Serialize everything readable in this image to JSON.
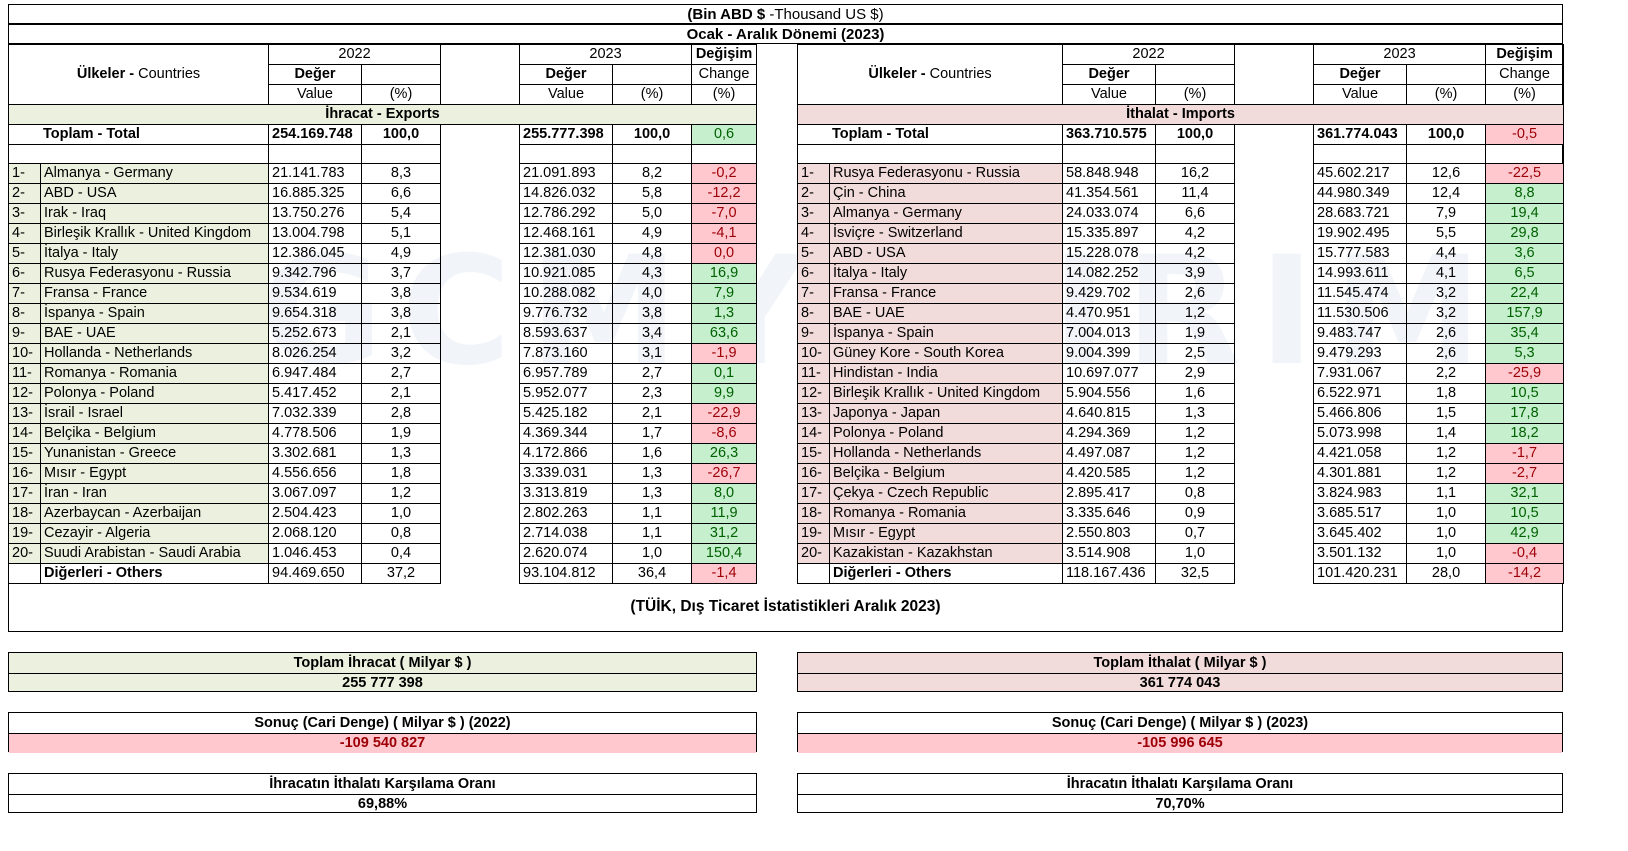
{
  "header": {
    "unit_bold": "(Bin ABD $",
    "unit_rest": " -Thousand US $)",
    "period": "Ocak - Aralık Dönemi  (2023)"
  },
  "columns": {
    "countries_bold": "Ülkeler - ",
    "countries_rest": "Countries",
    "year_2022": "2022",
    "year_2023": "2023",
    "deger": "Değer",
    "value": "Value",
    "pct": "(%)",
    "degisim": "Değişim",
    "change": "Change",
    "change_pct": "(%)"
  },
  "exports": {
    "section_title": "İhracat - Exports",
    "total": {
      "label": "Toplam - Total",
      "v2022": "254.169.748",
      "p2022": "100,0",
      "v2023": "255.777.398",
      "p2023": "100,0",
      "chg": "0,6",
      "dir": "pos"
    },
    "rows": [
      {
        "rank": "1-",
        "name": "Almanya - Germany",
        "v2022": "21.141.783",
        "p2022": "8,3",
        "v2023": "21.091.893",
        "p2023": "8,2",
        "chg": "-0,2",
        "dir": "neg"
      },
      {
        "rank": "2-",
        "name": "ABD - USA",
        "v2022": "16.885.325",
        "p2022": "6,6",
        "v2023": "14.826.032",
        "p2023": "5,8",
        "chg": "-12,2",
        "dir": "neg"
      },
      {
        "rank": "3-",
        "name": "Irak - Iraq",
        "v2022": "13.750.276",
        "p2022": "5,4",
        "v2023": "12.786.292",
        "p2023": "5,0",
        "chg": "-7,0",
        "dir": "neg"
      },
      {
        "rank": "4-",
        "name": "Birleşik Krallık - United Kingdom",
        "v2022": "13.004.798",
        "p2022": "5,1",
        "v2023": "12.468.161",
        "p2023": "4,9",
        "chg": "-4,1",
        "dir": "neg"
      },
      {
        "rank": "5-",
        "name": "İtalya - Italy",
        "v2022": "12.386.045",
        "p2022": "4,9",
        "v2023": "12.381.030",
        "p2023": "4,8",
        "chg": "0,0",
        "dir": "neg"
      },
      {
        "rank": "6-",
        "name": "Rusya Federasyonu - Russia",
        "v2022": "9.342.796",
        "p2022": "3,7",
        "v2023": "10.921.085",
        "p2023": "4,3",
        "chg": "16,9",
        "dir": "pos"
      },
      {
        "rank": "7-",
        "name": "Fransa - France",
        "v2022": "9.534.619",
        "p2022": "3,8",
        "v2023": "10.288.082",
        "p2023": "4,0",
        "chg": "7,9",
        "dir": "pos"
      },
      {
        "rank": "8-",
        "name": "İspanya - Spain",
        "v2022": "9.654.318",
        "p2022": "3,8",
        "v2023": "9.776.732",
        "p2023": "3,8",
        "chg": "1,3",
        "dir": "pos"
      },
      {
        "rank": "9-",
        "name": "BAE - UAE",
        "v2022": "5.252.673",
        "p2022": "2,1",
        "v2023": "8.593.637",
        "p2023": "3,4",
        "chg": "63,6",
        "dir": "pos"
      },
      {
        "rank": "10-",
        "name": "Hollanda - Netherlands",
        "v2022": "8.026.254",
        "p2022": "3,2",
        "v2023": "7.873.160",
        "p2023": "3,1",
        "chg": "-1,9",
        "dir": "neg"
      },
      {
        "rank": "11-",
        "name": "Romanya - Romania",
        "v2022": "6.947.484",
        "p2022": "2,7",
        "v2023": "6.957.789",
        "p2023": "2,7",
        "chg": "0,1",
        "dir": "pos"
      },
      {
        "rank": "12-",
        "name": "Polonya - Poland",
        "v2022": "5.417.452",
        "p2022": "2,1",
        "v2023": "5.952.077",
        "p2023": "2,3",
        "chg": "9,9",
        "dir": "pos"
      },
      {
        "rank": "13-",
        "name": "İsrail - Israel",
        "v2022": "7.032.339",
        "p2022": "2,8",
        "v2023": "5.425.182",
        "p2023": "2,1",
        "chg": "-22,9",
        "dir": "neg"
      },
      {
        "rank": "14-",
        "name": "Belçika - Belgium",
        "v2022": "4.778.506",
        "p2022": "1,9",
        "v2023": "4.369.344",
        "p2023": "1,7",
        "chg": "-8,6",
        "dir": "neg"
      },
      {
        "rank": "15-",
        "name": "Yunanistan - Greece",
        "v2022": "3.302.681",
        "p2022": "1,3",
        "v2023": "4.172.866",
        "p2023": "1,6",
        "chg": "26,3",
        "dir": "pos"
      },
      {
        "rank": "16-",
        "name": "Mısır - Egypt",
        "v2022": "4.556.656",
        "p2022": "1,8",
        "v2023": "3.339.031",
        "p2023": "1,3",
        "chg": "-26,7",
        "dir": "neg"
      },
      {
        "rank": "17-",
        "name": "İran - Iran",
        "v2022": "3.067.097",
        "p2022": "1,2",
        "v2023": "3.313.819",
        "p2023": "1,3",
        "chg": "8,0",
        "dir": "pos"
      },
      {
        "rank": "18-",
        "name": "Azerbaycan - Azerbaijan",
        "v2022": "2.504.423",
        "p2022": "1,0",
        "v2023": "2.802.263",
        "p2023": "1,1",
        "chg": "11,9",
        "dir": "pos"
      },
      {
        "rank": "19-",
        "name": "Cezayir - Algeria",
        "v2022": "2.068.120",
        "p2022": "0,8",
        "v2023": "2.714.038",
        "p2023": "1,1",
        "chg": "31,2",
        "dir": "pos"
      },
      {
        "rank": "20-",
        "name": "Suudi Arabistan - Saudi Arabia",
        "v2022": "1.046.453",
        "p2022": "0,4",
        "v2023": "2.620.074",
        "p2023": "1,0",
        "chg": "150,4",
        "dir": "pos"
      }
    ],
    "others": {
      "label": "Diğerleri - Others",
      "v2022": "94.469.650",
      "p2022": "37,2",
      "v2023": "93.104.812",
      "p2023": "36,4",
      "chg": "-1,4",
      "dir": "neg"
    }
  },
  "imports": {
    "section_title": "İthalat - Imports",
    "total": {
      "label": "Toplam - Total",
      "v2022": "363.710.575",
      "p2022": "100,0",
      "v2023": "361.774.043",
      "p2023": "100,0",
      "chg": "-0,5",
      "dir": "neg"
    },
    "rows": [
      {
        "rank": "1-",
        "name": "Rusya Federasyonu - Russia",
        "v2022": "58.848.948",
        "p2022": "16,2",
        "v2023": "45.602.217",
        "p2023": "12,6",
        "chg": "-22,5",
        "dir": "neg"
      },
      {
        "rank": "2-",
        "name": "Çin - China",
        "v2022": "41.354.561",
        "p2022": "11,4",
        "v2023": "44.980.349",
        "p2023": "12,4",
        "chg": "8,8",
        "dir": "pos"
      },
      {
        "rank": "3-",
        "name": "Almanya - Germany",
        "v2022": "24.033.074",
        "p2022": "6,6",
        "v2023": "28.683.721",
        "p2023": "7,9",
        "chg": "19,4",
        "dir": "pos"
      },
      {
        "rank": "4-",
        "name": "İsviçre - Switzerland",
        "v2022": "15.335.897",
        "p2022": "4,2",
        "v2023": "19.902.495",
        "p2023": "5,5",
        "chg": "29,8",
        "dir": "pos"
      },
      {
        "rank": "5-",
        "name": "ABD - USA",
        "v2022": "15.228.078",
        "p2022": "4,2",
        "v2023": "15.777.583",
        "p2023": "4,4",
        "chg": "3,6",
        "dir": "pos"
      },
      {
        "rank": "6-",
        "name": "İtalya - Italy",
        "v2022": "14.082.252",
        "p2022": "3,9",
        "v2023": "14.993.611",
        "p2023": "4,1",
        "chg": "6,5",
        "dir": "pos"
      },
      {
        "rank": "7-",
        "name": "Fransa - France",
        "v2022": "9.429.702",
        "p2022": "2,6",
        "v2023": "11.545.474",
        "p2023": "3,2",
        "chg": "22,4",
        "dir": "pos"
      },
      {
        "rank": "8-",
        "name": "BAE - UAE",
        "v2022": "4.470.951",
        "p2022": "1,2",
        "v2023": "11.530.506",
        "p2023": "3,2",
        "chg": "157,9",
        "dir": "pos"
      },
      {
        "rank": "9-",
        "name": "İspanya - Spain",
        "v2022": "7.004.013",
        "p2022": "1,9",
        "v2023": "9.483.747",
        "p2023": "2,6",
        "chg": "35,4",
        "dir": "pos"
      },
      {
        "rank": "10-",
        "name": "Güney Kore - South Korea",
        "v2022": "9.004.399",
        "p2022": "2,5",
        "v2023": "9.479.293",
        "p2023": "2,6",
        "chg": "5,3",
        "dir": "pos"
      },
      {
        "rank": "11-",
        "name": "Hindistan - India",
        "v2022": "10.697.077",
        "p2022": "2,9",
        "v2023": "7.931.067",
        "p2023": "2,2",
        "chg": "-25,9",
        "dir": "neg"
      },
      {
        "rank": "12-",
        "name": "Birleşik Krallık - United Kingdom",
        "v2022": "5.904.556",
        "p2022": "1,6",
        "v2023": "6.522.971",
        "p2023": "1,8",
        "chg": "10,5",
        "dir": "pos"
      },
      {
        "rank": "13-",
        "name": "Japonya - Japan",
        "v2022": "4.640.815",
        "p2022": "1,3",
        "v2023": "5.466.806",
        "p2023": "1,5",
        "chg": "17,8",
        "dir": "pos"
      },
      {
        "rank": "14-",
        "name": "Polonya - Poland",
        "v2022": "4.294.369",
        "p2022": "1,2",
        "v2023": "5.073.998",
        "p2023": "1,4",
        "chg": "18,2",
        "dir": "pos"
      },
      {
        "rank": "15-",
        "name": "Hollanda - Netherlands",
        "v2022": "4.497.087",
        "p2022": "1,2",
        "v2023": "4.421.058",
        "p2023": "1,2",
        "chg": "-1,7",
        "dir": "neg"
      },
      {
        "rank": "16-",
        "name": "Belçika - Belgium",
        "v2022": "4.420.585",
        "p2022": "1,2",
        "v2023": "4.301.881",
        "p2023": "1,2",
        "chg": "-2,7",
        "dir": "neg"
      },
      {
        "rank": "17-",
        "name": "Çekya - Czech Republic",
        "v2022": "2.895.417",
        "p2022": "0,8",
        "v2023": "3.824.983",
        "p2023": "1,1",
        "chg": "32,1",
        "dir": "pos"
      },
      {
        "rank": "18-",
        "name": "Romanya - Romania",
        "v2022": "3.335.646",
        "p2022": "0,9",
        "v2023": "3.685.517",
        "p2023": "1,0",
        "chg": "10,5",
        "dir": "pos"
      },
      {
        "rank": "19-",
        "name": "Mısır - Egypt",
        "v2022": "2.550.803",
        "p2022": "0,7",
        "v2023": "3.645.402",
        "p2023": "1,0",
        "chg": "42,9",
        "dir": "pos"
      },
      {
        "rank": "20-",
        "name": "Kazakistan - Kazakhstan",
        "v2022": "3.514.908",
        "p2022": "1,0",
        "v2023": "3.501.132",
        "p2023": "1,0",
        "chg": "-0,4",
        "dir": "neg"
      }
    ],
    "others": {
      "label": "Diğerleri - Others",
      "v2022": "118.167.436",
      "p2022": "32,5",
      "v2023": "101.420.231",
      "p2023": "28,0",
      "chg": "-14,2",
      "dir": "neg"
    }
  },
  "source": "(TÜİK, Dış Ticaret İstatistikleri Aralık 2023)",
  "summary": {
    "total_exports_label": "Toplam İhracat ( Milyar $ )",
    "total_exports_value": "255 777 398",
    "total_imports_label": "Toplam İthalat ( Milyar $ )",
    "total_imports_value": "361 774 043",
    "balance_2022_label": "Sonuç (Cari Denge) ( Milyar $ ) (2022)",
    "balance_2022_value": "-109 540 827",
    "balance_2023_label": "Sonuç (Cari Denge) ( Milyar $ ) (2023)",
    "balance_2023_value": "-105 996 645",
    "coverage_left_label": "İhracatın İthalatı Karşılama Oranı",
    "coverage_left_value": "69,88%",
    "coverage_right_label": "İhracatın İthalatı Karşılama Oranı",
    "coverage_right_value": "70,70%"
  },
  "watermark": "GCMYATIRIM",
  "colors": {
    "exports_bg": "#ebf1de",
    "imports_bg": "#f2dcdb",
    "positive_bg": "#c6efce",
    "positive_text": "#006100",
    "negative_bg": "#ffc7ce",
    "negative_text": "#9c0006"
  }
}
